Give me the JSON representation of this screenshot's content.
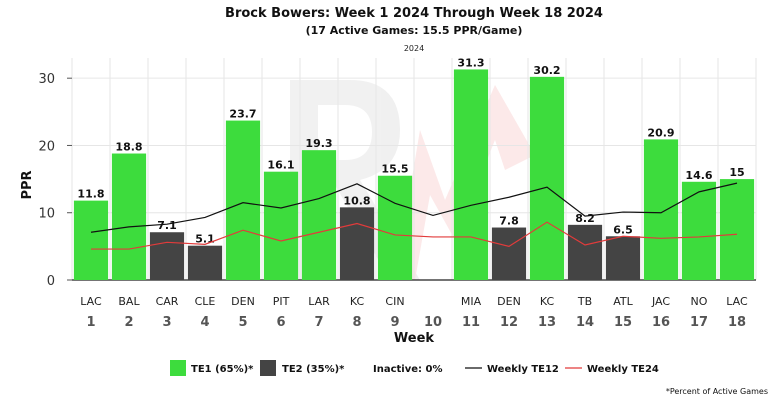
{
  "header": {
    "title": "Brock Bowers: Week 1 2024 Through Week 18 2024",
    "subtitle": "(17 Active Games: 15.5 PPR/Game)",
    "season": "2024"
  },
  "legend": {
    "te1": "TE1 (65%)*",
    "te2": "TE2 (35%)*",
    "inactive": "Inactive: 0%",
    "weekly_te12": "Weekly TE12",
    "weekly_te24": "Weekly TE24"
  },
  "footnote": "*Percent of Active Games",
  "colors": {
    "te1": "#3ddc3d",
    "te2": "#444444",
    "te12_line": "#111111",
    "te24_line": "#e23b3b",
    "grid": "#e6e6e6"
  },
  "chart_data": {
    "type": "bar",
    "ylabel": "PPR",
    "xlabel": "Week",
    "ylim": [
      0,
      33
    ],
    "yticks": [
      0,
      10,
      20,
      30
    ],
    "grid": true,
    "legend_position": "bottom",
    "weeks": [
      "1",
      "2",
      "3",
      "4",
      "5",
      "6",
      "7",
      "8",
      "9",
      "10",
      "11",
      "12",
      "13",
      "14",
      "15",
      "16",
      "17",
      "18"
    ],
    "opponents": [
      "LAC",
      "BAL",
      "CAR",
      "CLE",
      "DEN",
      "PIT",
      "LAR",
      "KC",
      "CIN",
      "",
      "MIA",
      "DEN",
      "KC",
      "TB",
      "ATL",
      "JAC",
      "NO",
      "LAC"
    ],
    "values": [
      11.8,
      18.8,
      7.1,
      5.1,
      23.7,
      16.1,
      19.3,
      10.8,
      15.5,
      null,
      31.3,
      7.8,
      30.2,
      8.2,
      6.5,
      20.9,
      14.6,
      15
    ],
    "value_labels": [
      "11.8",
      "18.8",
      "7.1",
      "5.1",
      "23.7",
      "16.1",
      "19.3",
      "10.8",
      "15.5",
      "",
      "31.3",
      "7.8",
      "30.2",
      "8.2",
      "6.5",
      "20.9",
      "14.6",
      "15"
    ],
    "tier": [
      "TE1",
      "TE1",
      "TE2",
      "TE2",
      "TE1",
      "TE1",
      "TE1",
      "TE2",
      "TE1",
      "",
      "TE1",
      "TE2",
      "TE1",
      "TE2",
      "TE2",
      "TE1",
      "TE1",
      "TE1"
    ],
    "series": [
      {
        "name": "Weekly TE12",
        "values": [
          7.1,
          7.9,
          8.3,
          9.3,
          11.5,
          10.7,
          12.1,
          14.3,
          11.4,
          9.6,
          11.1,
          12.3,
          13.8,
          9.5,
          10.1,
          10.0,
          13.1,
          14.4
        ]
      },
      {
        "name": "Weekly TE24",
        "values": [
          4.6,
          4.6,
          5.6,
          5.3,
          7.4,
          5.8,
          7.1,
          8.4,
          6.7,
          6.4,
          6.4,
          5.0,
          8.6,
          5.2,
          6.5,
          6.2,
          6.4,
          6.8
        ]
      }
    ]
  }
}
